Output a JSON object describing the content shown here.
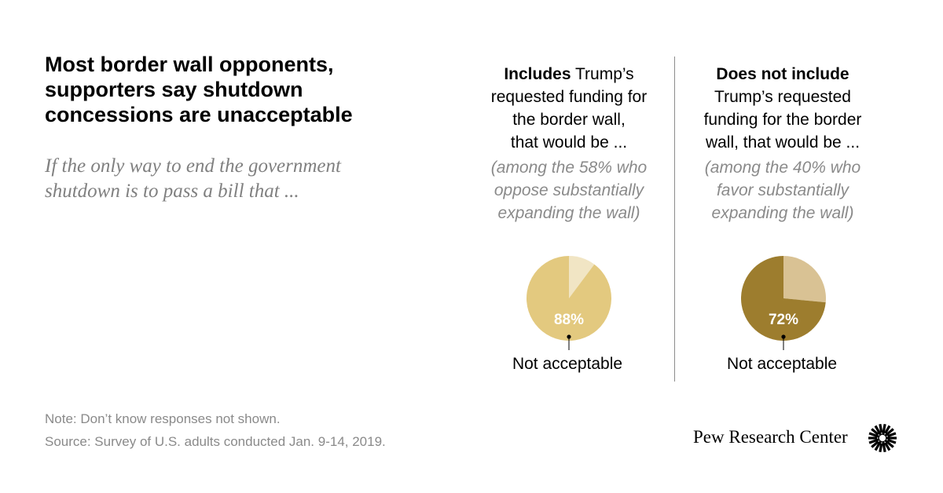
{
  "title": {
    "line1": "Most border wall opponents,",
    "line2": "supporters say shutdown",
    "line3": "concessions are unacceptable"
  },
  "subtitle": {
    "line1": "If the only way to end the government",
    "line2": "shutdown is to pass a bill that ..."
  },
  "columns": [
    {
      "head_bold": "Includes",
      "head_line1_rest": " Trump’s",
      "head_line2": "requested funding for",
      "head_line3": "the border wall,",
      "head_line4": "that would be ...",
      "among1": "(among the 58% who",
      "among2": "oppose substantially",
      "among3": "expanding the wall)"
    },
    {
      "head_bold": "Does not include",
      "head_line1_rest": "",
      "head_line2": "Trump’s requested",
      "head_line3": "funding for the border",
      "head_line4": "wall, that would be ...",
      "among1": "(among the 40% who",
      "among2": "favor substantially",
      "among3": "expanding the wall)"
    }
  ],
  "chart_data": [
    {
      "type": "pie",
      "slices": [
        {
          "label": "Not acceptable",
          "value": 88,
          "value_label": "88%",
          "color": "#e3c97f"
        },
        {
          "label": "",
          "value": 10,
          "color": "#f1e5c4"
        }
      ]
    },
    {
      "type": "pie",
      "slices": [
        {
          "label": "Not acceptable",
          "value": 72,
          "value_label": "72%",
          "color": "#9d7d2e"
        },
        {
          "label": "",
          "value": 26,
          "color": "#d9c294"
        }
      ]
    }
  ],
  "footer": {
    "note": "Note: Don’t know responses not shown.",
    "source": "Source: Survey of U.S. adults conducted Jan. 9-14, 2019.",
    "brand": "Pew Research Center"
  }
}
